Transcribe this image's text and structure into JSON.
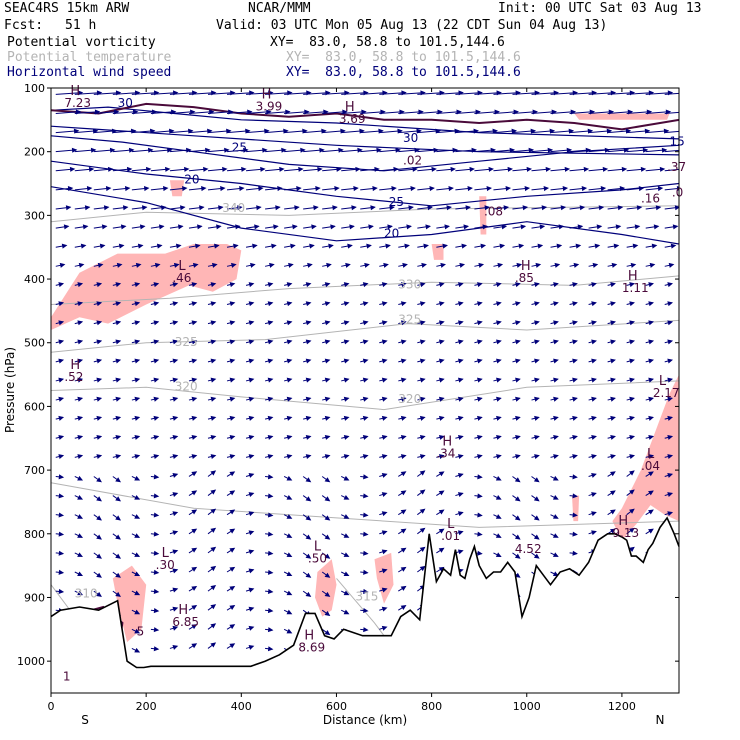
{
  "header": {
    "model": "SEAC4RS 15km ARW",
    "center": "NCAR/MMM",
    "init": "Init: 00 UTC Sat 03 Aug 13",
    "fcst_label": "Fcst:",
    "fcst_value": "51 h",
    "valid": "Valid: 03 UTC Mon 05 Aug 13 (22 CDT Sun 04 Aug 13)",
    "fields": [
      {
        "name": "Potential vorticity",
        "xy": "XY=  83.0, 58.8 to 101.5,144.6",
        "color": "#000000"
      },
      {
        "name": "Potential temperature",
        "xy": "XY=  83.0, 58.8 to 101.5,144.6",
        "color": "#b4b4b4"
      },
      {
        "name": "Horizontal wind speed",
        "xy": "XY=  83.0, 58.8 to 101.5,144.6",
        "color": "#00007a"
      }
    ]
  },
  "chart_data": {
    "type": "vertical cross-section",
    "xlabel": "Distance (km)",
    "ylabel": "Pressure (hPa)",
    "xlim": [
      0,
      1320
    ],
    "ylim": [
      1050,
      100
    ],
    "x_ticks": [
      0,
      200,
      400,
      600,
      800,
      1000,
      1200
    ],
    "y_ticks": [
      100,
      200,
      300,
      400,
      500,
      600,
      700,
      800,
      900,
      1000
    ],
    "x_end_labels": {
      "left": "S",
      "right": "N"
    },
    "colors": {
      "axis": "#000000",
      "pv_shading": "#ffb6b6",
      "theta": "#b4b4b4",
      "wind": "#00007a",
      "terrain": "#000000",
      "pv_high": "#4a0a3a"
    },
    "theta_contours": [
      {
        "label": "310",
        "x": 50,
        "p": 900
      },
      {
        "label": "315",
        "x": 640,
        "p": 905
      },
      {
        "label": "320",
        "x": 260,
        "p": 575
      },
      {
        "label": "320",
        "x": 730,
        "p": 595
      },
      {
        "label": "325",
        "x": 260,
        "p": 505
      },
      {
        "label": "325",
        "x": 730,
        "p": 470
      },
      {
        "label": "330",
        "x": 730,
        "p": 415
      },
      {
        "label": "340",
        "x": 360,
        "p": 295
      }
    ],
    "wind_speed_contours": [
      {
        "label": "30",
        "x": 140,
        "p": 130
      },
      {
        "label": "25",
        "x": 380,
        "p": 200
      },
      {
        "label": "20",
        "x": 280,
        "p": 250
      },
      {
        "label": "25",
        "x": 710,
        "p": 285
      },
      {
        "label": "20",
        "x": 700,
        "p": 335
      },
      {
        "label": "30",
        "x": 740,
        "p": 185
      },
      {
        "label": "15",
        "x": 1300,
        "p": 190
      }
    ],
    "extrema": [
      {
        "type": "H",
        "value": "7.23",
        "x": 28,
        "p": 130
      },
      {
        "type": "H",
        "value": "3.99",
        "x": 430,
        "p": 135
      },
      {
        "type": "H",
        "value": "3.69",
        "x": 605,
        "p": 155
      },
      {
        "type": "",
        "value": ".02",
        "x": 740,
        "p": 220
      },
      {
        "type": "",
        "value": ".08",
        "x": 910,
        "p": 300
      },
      {
        "type": "",
        "value": ".16",
        "x": 1240,
        "p": 280
      },
      {
        "type": "",
        "value": ".37",
        "x": 1295,
        "p": 230
      },
      {
        "type": "",
        "value": ".0",
        "x": 1305,
        "p": 270
      },
      {
        "type": "L",
        "value": ".46",
        "x": 255,
        "p": 405
      },
      {
        "type": "H",
        "value": ".85",
        "x": 975,
        "p": 405
      },
      {
        "type": "H",
        "value": "1.11",
        "x": 1200,
        "p": 420
      },
      {
        "type": "H",
        "value": ".52",
        "x": 28,
        "p": 560
      },
      {
        "type": "L",
        "value": "2.17",
        "x": 1265,
        "p": 585
      },
      {
        "type": "H",
        "value": ".34",
        "x": 810,
        "p": 680
      },
      {
        "type": "L",
        "value": ".04",
        "x": 1240,
        "p": 700
      },
      {
        "type": "L",
        "value": ".01",
        "x": 820,
        "p": 810
      },
      {
        "type": "H",
        "value": "9.13",
        "x": 1180,
        "p": 805
      },
      {
        "type": "L",
        "value": ".30",
        "x": 220,
        "p": 855
      },
      {
        "type": "L",
        "value": ".50",
        "x": 540,
        "p": 845
      },
      {
        "type": "",
        "value": "4.52",
        "x": 975,
        "p": 830
      },
      {
        "type": "H",
        "value": "6.85",
        "x": 255,
        "p": 945
      },
      {
        "type": "",
        "value": "5",
        "x": 180,
        "p": 960
      },
      {
        "type": "H",
        "value": "8.69",
        "x": 520,
        "p": 985
      },
      {
        "type": "",
        "value": "1",
        "x": 25,
        "p": 1030
      }
    ],
    "terrain_profile": {
      "x": [
        0,
        20,
        60,
        100,
        140,
        160,
        180,
        195,
        210,
        230,
        260,
        300,
        340,
        380,
        420,
        450,
        480,
        510,
        535,
        555,
        575,
        595,
        615,
        635,
        655,
        675,
        695,
        715,
        735,
        755,
        775,
        795,
        810,
        825,
        840,
        850,
        860,
        870,
        880,
        890,
        900,
        915,
        930,
        945,
        960,
        975,
        990,
        1005,
        1020,
        1035,
        1050,
        1070,
        1090,
        1110,
        1130,
        1150,
        1170,
        1185,
        1200,
        1210,
        1220,
        1230,
        1245,
        1255,
        1265,
        1280,
        1295,
        1310,
        1320
      ],
      "p": [
        930,
        920,
        915,
        920,
        905,
        1000,
        1010,
        1010,
        1008,
        1008,
        1008,
        1008,
        1008,
        1008,
        1008,
        1000,
        990,
        975,
        925,
        925,
        960,
        965,
        950,
        955,
        960,
        960,
        960,
        960,
        930,
        920,
        935,
        800,
        875,
        855,
        865,
        825,
        865,
        870,
        840,
        820,
        850,
        870,
        860,
        860,
        845,
        860,
        930,
        900,
        850,
        865,
        880,
        860,
        855,
        865,
        845,
        810,
        800,
        800,
        805,
        810,
        835,
        835,
        845,
        825,
        815,
        790,
        775,
        800,
        820
      ]
    },
    "pv_shaded_regions": [
      {
        "x": [
          0,
          60,
          140,
          240,
          300,
          370,
          400,
          390,
          340,
          290,
          200,
          120,
          60,
          0
        ],
        "p": [
          460,
          390,
          360,
          360,
          345,
          345,
          355,
          400,
          420,
          410,
          440,
          470,
          460,
          480
        ]
      },
      {
        "x": [
          1200,
          1240,
          1270,
          1300,
          1320,
          1320,
          1290,
          1260,
          1230,
          1200,
          1180
        ],
        "p": [
          760,
          700,
          640,
          580,
          550,
          780,
          770,
          755,
          785,
          810,
          780
        ]
      },
      {
        "x": [
          130,
          170,
          200,
          190,
          160,
          140
        ],
        "p": [
          870,
          850,
          880,
          950,
          970,
          910
        ]
      },
      {
        "x": [
          560,
          590,
          600,
          590,
          570,
          555
        ],
        "p": [
          860,
          840,
          880,
          920,
          930,
          900
        ]
      },
      {
        "x": [
          680,
          715,
          720,
          700,
          685
        ],
        "p": [
          840,
          830,
          880,
          910,
          870
        ]
      },
      {
        "x": [
          1095,
          1110,
          1108,
          1098
        ],
        "p": [
          740,
          740,
          780,
          780
        ]
      },
      {
        "x": [
          250,
          280,
          275,
          255
        ],
        "p": [
          245,
          245,
          270,
          270
        ]
      },
      {
        "x": [
          800,
          825,
          825,
          805
        ],
        "p": [
          345,
          345,
          370,
          370
        ]
      },
      {
        "x": [
          900,
          915,
          915,
          903
        ],
        "p": [
          270,
          270,
          330,
          330
        ]
      },
      {
        "x": [
          1100,
          1300,
          1295,
          1110
        ],
        "p": [
          140,
          140,
          150,
          150
        ]
      }
    ]
  }
}
